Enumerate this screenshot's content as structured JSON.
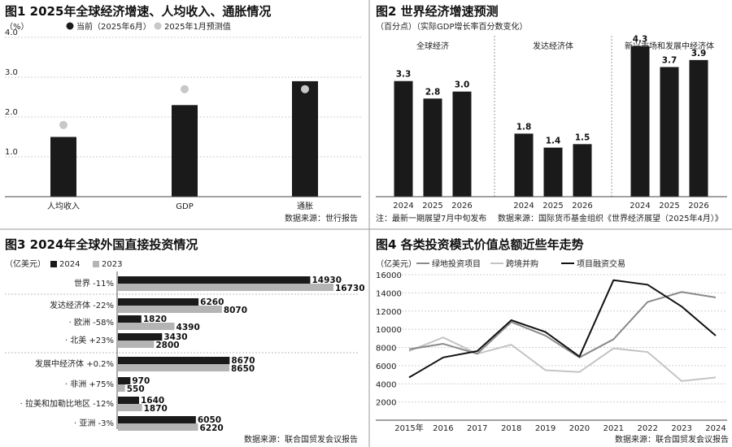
{
  "chart_data": [
    {
      "type": "bar",
      "title": "图1 2025年全球经济增速、人均收入、通胀情况",
      "unit": "（%）",
      "legend": [
        "当前（2025年6月）",
        "2025年1月预测值"
      ],
      "categories": [
        "人均收入",
        "GDP",
        "通胀"
      ],
      "series": [
        {
          "name": "当前（2025年6月）",
          "values": [
            1.5,
            2.3,
            2.9
          ]
        },
        {
          "name": "2025年1月预测值",
          "values": [
            1.8,
            2.7,
            2.7
          ]
        }
      ],
      "yticks": [
        "1.0",
        "2.0",
        "3.0",
        "4.0"
      ],
      "ylim": [
        0,
        4
      ],
      "source": "数据来源：世行报告",
      "colors": {
        "current": "#1a1a1a",
        "forecast": "#c8c8c8"
      }
    },
    {
      "type": "bar",
      "title": "图2 世界经济增速预测",
      "unit": "（百分点）（实际GDP增长率百分数变化）",
      "groups": [
        {
          "name": "全球经济",
          "x": [
            "2024",
            "2025",
            "2026"
          ],
          "values": [
            3.3,
            2.8,
            3.0
          ],
          "labels": [
            "3.3",
            "2.8",
            "3.0"
          ]
        },
        {
          "name": "发达经济体",
          "x": [
            "2024",
            "2025",
            "2026"
          ],
          "values": [
            1.8,
            1.4,
            1.5
          ],
          "labels": [
            "1.8",
            "1.4",
            "1.5"
          ]
        },
        {
          "name": "新兴市场和发展中经济体",
          "x": [
            "2024",
            "2025",
            "2026"
          ],
          "values": [
            4.3,
            3.7,
            3.9
          ],
          "labels": [
            "4.3",
            "3.7",
            "3.9"
          ]
        }
      ],
      "note": "注：最新一期展望7月中旬发布",
      "source": "数据来源：国际货币基金组织《世界经济展望（2025年4月）》",
      "ylim": [
        0,
        4.5
      ]
    },
    {
      "type": "bar",
      "orientation": "horizontal",
      "title": "图3 2024年全球外国直接投资情况",
      "unit": "（亿美元）",
      "legend": [
        "2024",
        "2023"
      ],
      "rows": [
        {
          "label": "世界 -11%",
          "v2024": 14930,
          "v2023": 16730,
          "l2024": "14930",
          "l2023": "16730",
          "sub": false
        },
        {
          "label": "发达经济体 -22%",
          "v2024": 6260,
          "v2023": 8070,
          "l2024": "6260",
          "l2023": "8070",
          "sub": false
        },
        {
          "label": "· 欧洲 -58%",
          "v2024": 1820,
          "v2023": 4390,
          "l2024": "1820",
          "l2023": "4390",
          "sub": true
        },
        {
          "label": "· 北美 +23%",
          "v2024": 3430,
          "v2023": 2800,
          "l2024": "3430",
          "l2023": "2800",
          "sub": true
        },
        {
          "label": "发展中经济体 +0.2%",
          "v2024": 8670,
          "v2023": 8650,
          "l2024": "8670",
          "l2023": "8650",
          "sub": false
        },
        {
          "label": "· 非洲 +75%",
          "v2024": 970,
          "v2023": 550,
          "l2024": "970",
          "l2023": "550",
          "sub": true
        },
        {
          "label": "· 拉美和加勒比地区 -12%",
          "v2024": 1640,
          "v2023": 1870,
          "l2024": "1640",
          "l2023": "1870",
          "sub": true
        },
        {
          "label": "· 亚洲 -3%",
          "v2024": 6050,
          "v2023": 6220,
          "l2024": "6050",
          "l2023": "6220",
          "sub": true
        }
      ],
      "xlim": [
        0,
        16730
      ],
      "source": "数据来源：联合国贸发会议报告"
    },
    {
      "type": "line",
      "title": "图4 各类投资模式价值总额近些年走势",
      "unit": "（亿美元）",
      "x": [
        "2015年",
        "2016",
        "2017",
        "2018",
        "2019",
        "2020",
        "2021",
        "2022",
        "2023",
        "2024"
      ],
      "series": [
        {
          "name": "绿地投资项目",
          "values": [
            7800,
            8400,
            7300,
            10800,
            9300,
            6900,
            8900,
            13000,
            14100,
            13500
          ]
        },
        {
          "name": "跨境并购",
          "values": [
            7600,
            9100,
            7300,
            8300,
            5500,
            5300,
            7900,
            7500,
            4300,
            4700
          ]
        },
        {
          "name": "项目融资交易",
          "values": [
            4700,
            6900,
            7600,
            11000,
            9700,
            7000,
            15400,
            14900,
            12500,
            9300
          ]
        }
      ],
      "yticks": [
        "2000",
        "4000",
        "6000",
        "8000",
        "10000",
        "12000",
        "14000",
        "16000"
      ],
      "ylim": [
        0,
        16000
      ],
      "source": "数据来源：联合国贸发会议报告",
      "colors": {
        "绿地投资项目": "#8a8a8a",
        "跨境并购": "#c4c4c4",
        "项目融资交易": "#111111"
      }
    }
  ]
}
